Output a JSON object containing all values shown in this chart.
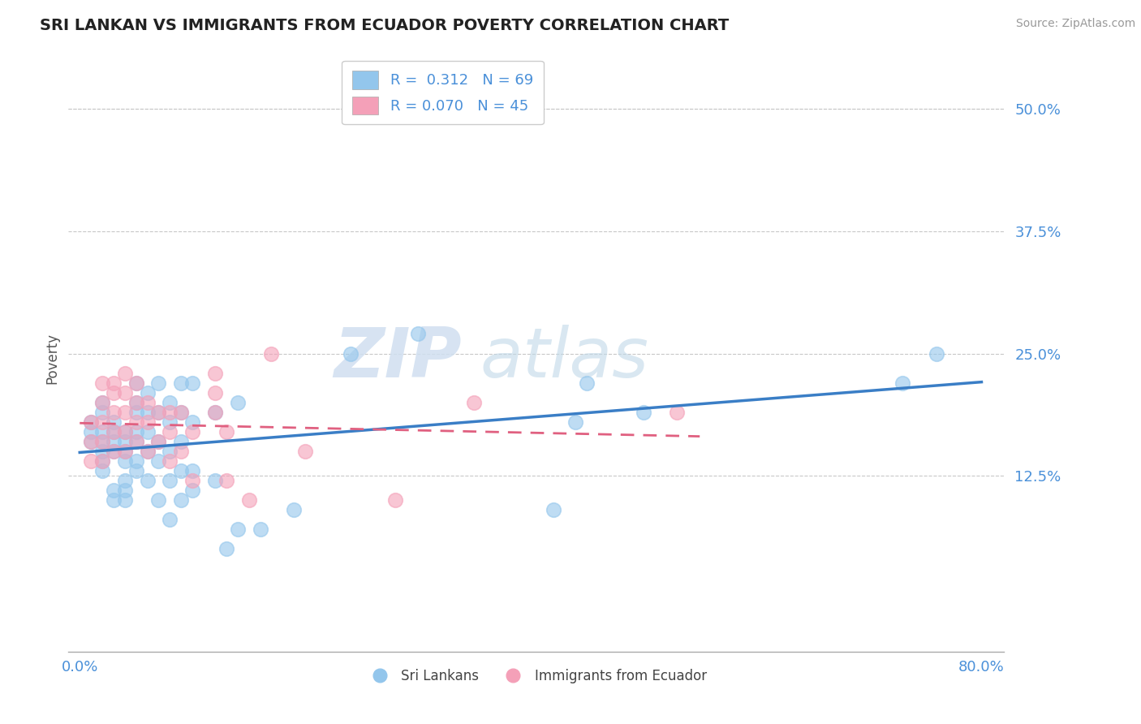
{
  "title": "SRI LANKAN VS IMMIGRANTS FROM ECUADOR POVERTY CORRELATION CHART",
  "source": "Source: ZipAtlas.com",
  "ylabel": "Poverty",
  "xlabel": "",
  "xlim": [
    -0.01,
    0.82
  ],
  "ylim": [
    -0.055,
    0.545
  ],
  "xticks": [
    0.0,
    0.8
  ],
  "xticklabels": [
    "0.0%",
    "80.0%"
  ],
  "yticks": [
    0.125,
    0.25,
    0.375,
    0.5
  ],
  "yticklabels": [
    "12.5%",
    "25.0%",
    "37.5%",
    "50.0%"
  ],
  "sri_lankan_color": "#93C6EC",
  "ecuador_color": "#F4A0B8",
  "sri_lankan_line_color": "#3A7EC6",
  "ecuador_line_color": "#E06080",
  "watermark_zip": "ZIP",
  "watermark_atlas": "atlas",
  "sri_lankans_x": [
    0.01,
    0.01,
    0.01,
    0.02,
    0.02,
    0.02,
    0.02,
    0.02,
    0.02,
    0.02,
    0.03,
    0.03,
    0.03,
    0.03,
    0.03,
    0.03,
    0.04,
    0.04,
    0.04,
    0.04,
    0.04,
    0.04,
    0.04,
    0.05,
    0.05,
    0.05,
    0.05,
    0.05,
    0.05,
    0.05,
    0.06,
    0.06,
    0.06,
    0.06,
    0.06,
    0.07,
    0.07,
    0.07,
    0.07,
    0.07,
    0.08,
    0.08,
    0.08,
    0.08,
    0.08,
    0.09,
    0.09,
    0.09,
    0.09,
    0.09,
    0.1,
    0.1,
    0.1,
    0.1,
    0.12,
    0.12,
    0.13,
    0.14,
    0.14,
    0.16,
    0.19,
    0.24,
    0.3,
    0.42,
    0.44,
    0.45,
    0.5,
    0.73,
    0.76
  ],
  "sri_lankans_y": [
    0.16,
    0.17,
    0.18,
    0.14,
    0.16,
    0.17,
    0.19,
    0.2,
    0.15,
    0.13,
    0.15,
    0.16,
    0.17,
    0.18,
    0.1,
    0.11,
    0.12,
    0.14,
    0.15,
    0.16,
    0.17,
    0.1,
    0.11,
    0.13,
    0.14,
    0.16,
    0.17,
    0.19,
    0.2,
    0.22,
    0.12,
    0.15,
    0.17,
    0.19,
    0.21,
    0.14,
    0.16,
    0.19,
    0.22,
    0.1,
    0.12,
    0.15,
    0.18,
    0.2,
    0.08,
    0.1,
    0.13,
    0.16,
    0.19,
    0.22,
    0.11,
    0.13,
    0.18,
    0.22,
    0.12,
    0.19,
    0.05,
    0.07,
    0.2,
    0.07,
    0.09,
    0.25,
    0.27,
    0.09,
    0.18,
    0.22,
    0.19,
    0.22,
    0.25
  ],
  "ecuador_x": [
    0.01,
    0.01,
    0.01,
    0.02,
    0.02,
    0.02,
    0.02,
    0.02,
    0.03,
    0.03,
    0.03,
    0.03,
    0.03,
    0.04,
    0.04,
    0.04,
    0.04,
    0.04,
    0.05,
    0.05,
    0.05,
    0.05,
    0.06,
    0.06,
    0.06,
    0.07,
    0.07,
    0.08,
    0.08,
    0.08,
    0.09,
    0.09,
    0.1,
    0.1,
    0.12,
    0.12,
    0.12,
    0.13,
    0.13,
    0.15,
    0.17,
    0.2,
    0.28,
    0.35,
    0.53
  ],
  "ecuador_y": [
    0.14,
    0.16,
    0.18,
    0.14,
    0.16,
    0.18,
    0.2,
    0.22,
    0.15,
    0.17,
    0.19,
    0.21,
    0.22,
    0.15,
    0.17,
    0.19,
    0.21,
    0.23,
    0.16,
    0.18,
    0.2,
    0.22,
    0.15,
    0.18,
    0.2,
    0.16,
    0.19,
    0.14,
    0.17,
    0.19,
    0.15,
    0.19,
    0.12,
    0.17,
    0.19,
    0.21,
    0.23,
    0.12,
    0.17,
    0.1,
    0.25,
    0.15,
    0.1,
    0.2,
    0.19
  ]
}
